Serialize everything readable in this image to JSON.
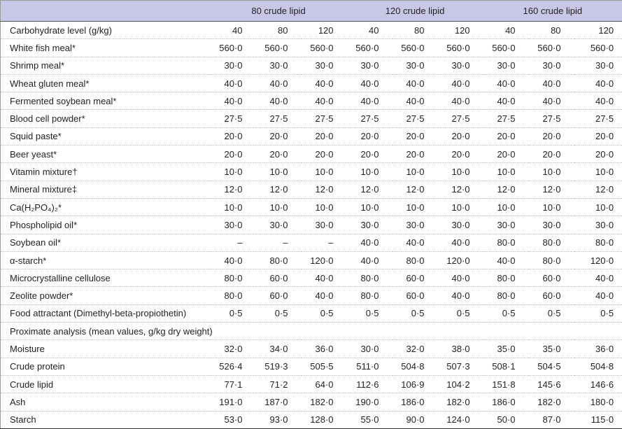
{
  "table": {
    "group_headers": [
      "80 crude lipid",
      "120 crude lipid",
      "160 crude lipid"
    ],
    "rows": [
      {
        "label": "Carbohydrate level (g/kg)",
        "cells": [
          "40",
          "80",
          "120",
          "40",
          "80",
          "120",
          "40",
          "80",
          "120"
        ]
      },
      {
        "label": "White fish meal*",
        "cells": [
          "560·0",
          "560·0",
          "560·0",
          "560·0",
          "560·0",
          "560·0",
          "560·0",
          "560·0",
          "560·0"
        ]
      },
      {
        "label": "Shrimp meal*",
        "cells": [
          "30·0",
          "30·0",
          "30·0",
          "30·0",
          "30·0",
          "30·0",
          "30·0",
          "30·0",
          "30·0"
        ]
      },
      {
        "label": "Wheat gluten meal*",
        "cells": [
          "40·0",
          "40·0",
          "40·0",
          "40·0",
          "40·0",
          "40·0",
          "40·0",
          "40·0",
          "40·0"
        ]
      },
      {
        "label": "Fermented soybean meal*",
        "cells": [
          "40·0",
          "40·0",
          "40·0",
          "40·0",
          "40·0",
          "40·0",
          "40·0",
          "40·0",
          "40·0"
        ]
      },
      {
        "label": "Blood cell powder*",
        "cells": [
          "27·5",
          "27·5",
          "27·5",
          "27·5",
          "27·5",
          "27·5",
          "27·5",
          "27·5",
          "27·5"
        ]
      },
      {
        "label": "Squid paste*",
        "cells": [
          "20·0",
          "20·0",
          "20·0",
          "20·0",
          "20·0",
          "20·0",
          "20·0",
          "20·0",
          "20·0"
        ]
      },
      {
        "label": "Beer yeast*",
        "cells": [
          "20·0",
          "20·0",
          "20·0",
          "20·0",
          "20·0",
          "20·0",
          "20·0",
          "20·0",
          "20·0"
        ]
      },
      {
        "label": "Vitamin mixture†",
        "cells": [
          "10·0",
          "10·0",
          "10·0",
          "10·0",
          "10·0",
          "10·0",
          "10·0",
          "10·0",
          "10·0"
        ]
      },
      {
        "label": "Mineral mixture‡",
        "cells": [
          "12·0",
          "12·0",
          "12·0",
          "12·0",
          "12·0",
          "12·0",
          "12·0",
          "12·0",
          "12·0"
        ]
      },
      {
        "label": "Ca(H₂PO₄)₂*",
        "cells": [
          "10·0",
          "10·0",
          "10·0",
          "10·0",
          "10·0",
          "10·0",
          "10·0",
          "10·0",
          "10·0"
        ]
      },
      {
        "label": "Phospholipid oil*",
        "cells": [
          "30·0",
          "30·0",
          "30·0",
          "30·0",
          "30·0",
          "30·0",
          "30·0",
          "30·0",
          "30·0"
        ]
      },
      {
        "label": "Soybean oil*",
        "cells": [
          "–",
          "–",
          "–",
          "40·0",
          "40·0",
          "40·0",
          "80·0",
          "80·0",
          "80·0"
        ]
      },
      {
        "label": "α-starch*",
        "cells": [
          "40·0",
          "80·0",
          "120·0",
          "40·0",
          "80·0",
          "120·0",
          "40·0",
          "80·0",
          "120·0"
        ]
      },
      {
        "label": "Microcrystalline cellulose",
        "cells": [
          "80·0",
          "60·0",
          "40·0",
          "80·0",
          "60·0",
          "40·0",
          "80·0",
          "60·0",
          "40·0"
        ]
      },
      {
        "label": "Zeolite powder*",
        "cells": [
          "80·0",
          "60·0",
          "40·0",
          "80·0",
          "60·0",
          "40·0",
          "80·0",
          "60·0",
          "40·0"
        ]
      },
      {
        "label": "Food attractant (Dimethyl-beta-propiothetin)",
        "cells": [
          "0·5",
          "0·5",
          "0·5",
          "0·5",
          "0·5",
          "0·5",
          "0·5",
          "0·5",
          "0·5"
        ]
      },
      {
        "label": "Proximate analysis (mean values, g/kg dry weight)"
      },
      {
        "label": "Moisture",
        "cells": [
          "32·0",
          "34·0",
          "36·0",
          "30·0",
          "32·0",
          "38·0",
          "35·0",
          "35·0",
          "36·0"
        ]
      },
      {
        "label": "Crude protein",
        "cells": [
          "526·4",
          "519·3",
          "505·5",
          "511·0",
          "504·8",
          "507·3",
          "508·1",
          "504·5",
          "504·8"
        ]
      },
      {
        "label": "Crude lipid",
        "cells": [
          "77·1",
          "71·2",
          "64·0",
          "112·6",
          "106·9",
          "104·2",
          "151·8",
          "145·6",
          "146·6"
        ]
      },
      {
        "label": "Ash",
        "cells": [
          "191·0",
          "187·0",
          "182·0",
          "190·0",
          "186·0",
          "182·0",
          "186·0",
          "182·0",
          "180·0"
        ]
      },
      {
        "label": "Starch",
        "cells": [
          "53·0",
          "93·0",
          "128·0",
          "55·0",
          "90·0",
          "124·0",
          "50·0",
          "87·0",
          "115·0"
        ]
      }
    ]
  }
}
